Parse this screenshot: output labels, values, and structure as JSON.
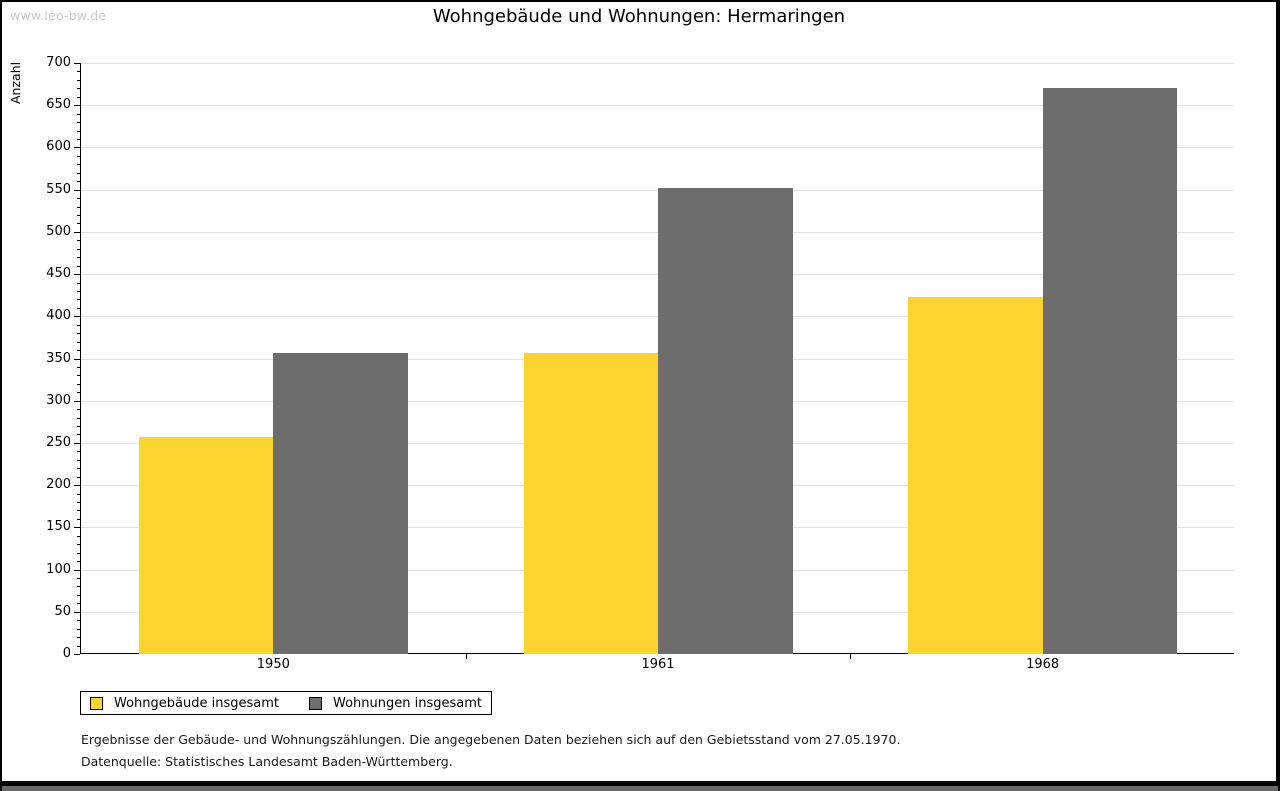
{
  "watermark": "www.leo-bw.de",
  "title": "Wohngebäude und Wohnungen: Hermaringen",
  "chart_data": {
    "type": "bar",
    "title": "Wohngebäude und Wohnungen: Hermaringen",
    "categories": [
      "1950",
      "1961",
      "1968"
    ],
    "series": [
      {
        "name": "Wohngebäude insgesamt",
        "color": "#FCD32F",
        "values": [
          257,
          356,
          423
        ]
      },
      {
        "name": "Wohnungen insgesamt",
        "color": "#6D6D6D",
        "values": [
          356,
          552,
          670
        ]
      }
    ],
    "xlabel": "",
    "ylabel": "Anzahl",
    "ylim": [
      0,
      700
    ],
    "ytick_step": 50,
    "yminor_step": 10,
    "grid": true,
    "gridline_color": "#e4e4e4",
    "legend_position": "bottom-left"
  },
  "footer": {
    "note": "Ergebnisse der Gebäude- und Wohnungszählungen. Die angegebenen Daten beziehen sich auf den Gebietsstand vom 27.05.1970.",
    "source": "Datenquelle: Statistisches Landesamt Baden-Württemberg."
  }
}
